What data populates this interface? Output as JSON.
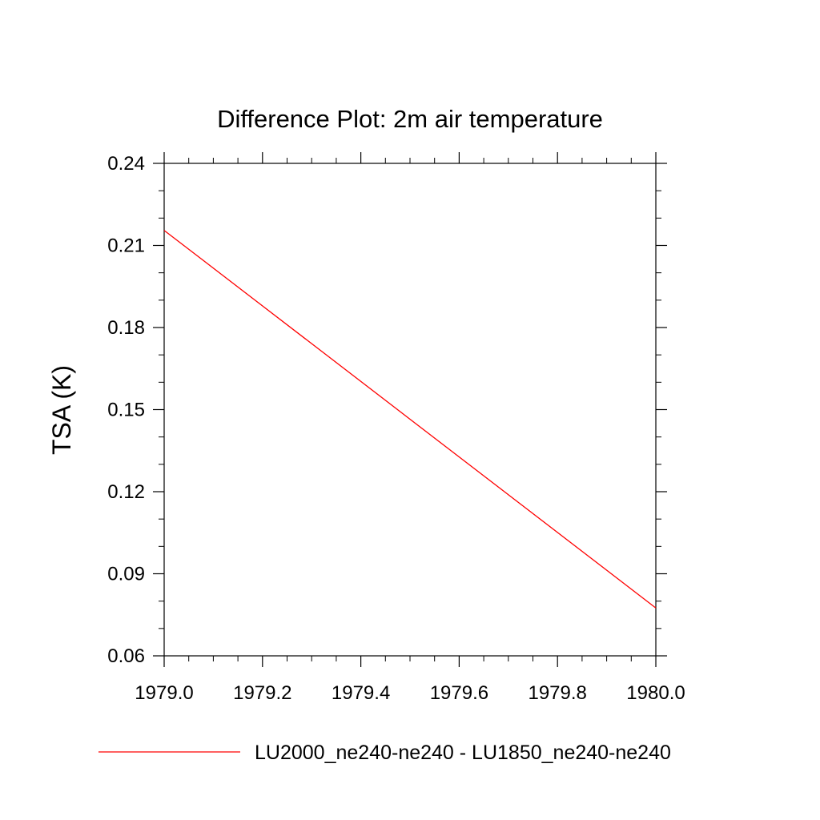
{
  "chart_data": {
    "type": "line",
    "title": "Difference Plot: 2m air temperature",
    "xlabel": "",
    "ylabel": "TSA  (K)",
    "xlim": [
      1979.0,
      1980.0
    ],
    "ylim": [
      0.06,
      0.24
    ],
    "x_ticks": [
      "1979.0",
      "1979.2",
      "1979.4",
      "1979.6",
      "1979.8",
      "1980.0"
    ],
    "y_ticks": [
      "0.06",
      "0.09",
      "0.12",
      "0.15",
      "0.18",
      "0.21",
      "0.24"
    ],
    "grid": false,
    "legend_position": "bottom",
    "series": [
      {
        "name": "LU2000_ne240-ne240 - LU1850_ne240-ne240",
        "color": "#ff0000",
        "x": [
          1979.0,
          1980.0
        ],
        "y": [
          0.2155,
          0.0775
        ]
      }
    ]
  }
}
